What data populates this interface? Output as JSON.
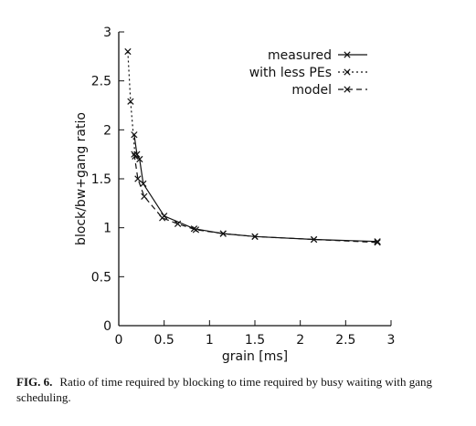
{
  "chart_data": {
    "type": "line",
    "title": "",
    "xlabel": "grain [ms]",
    "ylabel": "block/bw+gang ratio",
    "xlim": [
      0,
      3
    ],
    "ylim": [
      0,
      3
    ],
    "xticks": [
      "0",
      "0.5",
      "1",
      "1.5",
      "2",
      "2.5",
      "3"
    ],
    "yticks": [
      "0",
      "0.5",
      "1",
      "1.5",
      "2",
      "2.5",
      "3"
    ],
    "grid": false,
    "legend_position": "top-right",
    "series": [
      {
        "name": "measured",
        "style": "solid",
        "marker": "x",
        "color": "#111111",
        "x": [
          0.17,
          0.2,
          0.23,
          0.27,
          0.5,
          0.83,
          1.15,
          1.5,
          2.15,
          2.85
        ],
        "y": [
          1.95,
          1.75,
          1.7,
          1.45,
          1.12,
          0.99,
          0.94,
          0.91,
          0.88,
          0.86
        ]
      },
      {
        "name": "with less PEs",
        "style": "dotted",
        "marker": "x",
        "color": "#111111",
        "x": [
          0.1,
          0.13,
          0.18
        ],
        "y": [
          2.8,
          2.29,
          1.73
        ]
      },
      {
        "name": "model",
        "style": "dashed",
        "marker": "x",
        "color": "#111111",
        "x": [
          0.17,
          0.21,
          0.28,
          0.48,
          0.65,
          0.85,
          1.15,
          1.5,
          2.15,
          2.85
        ],
        "y": [
          1.75,
          1.5,
          1.32,
          1.1,
          1.04,
          0.98,
          0.94,
          0.91,
          0.88,
          0.85
        ]
      }
    ]
  },
  "caption": {
    "label": "FIG. 6.",
    "text": "Ratio of time required by blocking to time required by busy waiting with gang scheduling."
  }
}
